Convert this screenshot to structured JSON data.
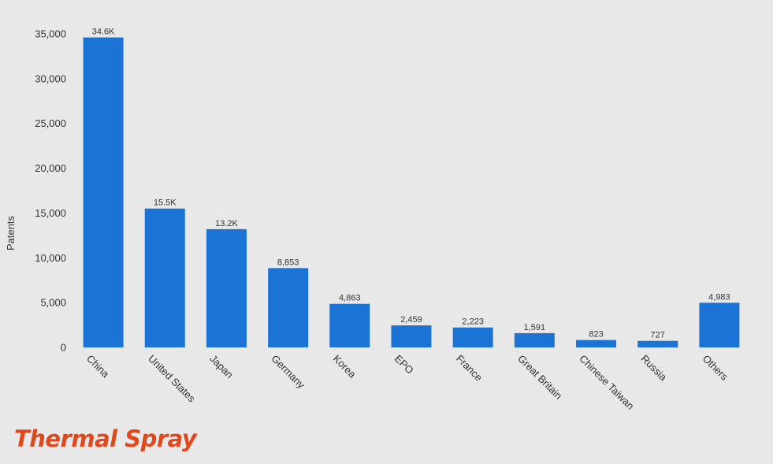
{
  "caption": {
    "text": "Thermal Spray",
    "color": "#e0481c"
  },
  "chart_data": {
    "type": "bar",
    "title": "",
    "xlabel": "",
    "ylabel": "Patents",
    "ylim": [
      0,
      35000
    ],
    "yticks": [
      0,
      5000,
      10000,
      15000,
      20000,
      25000,
      30000,
      35000
    ],
    "ytick_labels": [
      "0",
      "5,000",
      "10,000",
      "15,000",
      "20,000",
      "25,000",
      "30,000",
      "35,000"
    ],
    "categories": [
      "China",
      "United States",
      "Japan",
      "Germany",
      "Korea",
      "EPO",
      "France",
      "Great Britain",
      "Chinese Taiwan",
      "Russia",
      "Others"
    ],
    "values": [
      34600,
      15500,
      13200,
      8853,
      4863,
      2459,
      2223,
      1591,
      823,
      727,
      4983
    ],
    "value_labels": [
      "34.6K",
      "15.5K",
      "13.2K",
      "8,853",
      "4,863",
      "2,459",
      "2,223",
      "1,591",
      "823",
      "727",
      "4,983"
    ],
    "grid": false,
    "legend": "none",
    "bar_color": "#1a73d5"
  }
}
